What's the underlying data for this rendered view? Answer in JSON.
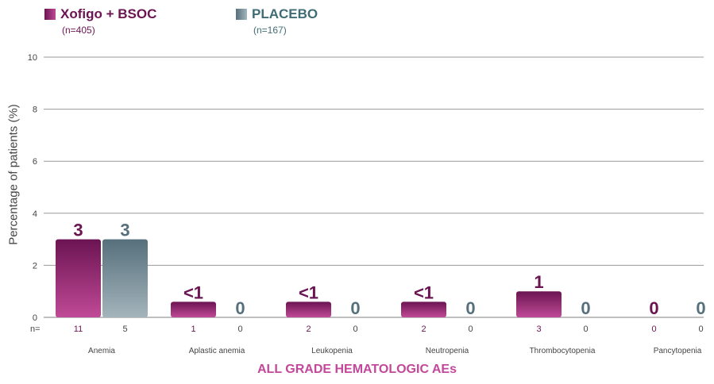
{
  "chart_data": {
    "type": "bar",
    "xlabel": "ALL GRADE HEMATOLOGIC AEs",
    "ylabel": "Percentage of patients (%)",
    "ylim": [
      0,
      10
    ],
    "yticks": [
      0,
      2,
      4,
      6,
      8,
      10
    ],
    "grid": true,
    "categories": [
      "Anemia",
      "Aplastic anemia",
      "Leukopenia",
      "Neutropenia",
      "Thrombocytopenia",
      "Pancytopenia"
    ],
    "n_prefix": "n=",
    "series": [
      {
        "name": "Xofigo + BSOC",
        "n_label": "(n=405)",
        "values": [
          3,
          0.6,
          0.6,
          0.6,
          1,
          0
        ],
        "data_labels": [
          "3",
          "<1",
          "<1",
          "<1",
          "1",
          "0"
        ],
        "n_values": [
          "11",
          "1",
          "2",
          "2",
          "3",
          "0"
        ],
        "color": "#6b1452",
        "gradient": [
          "#6b1452",
          "#c04a97"
        ]
      },
      {
        "name": "PLACEBO",
        "n_label": "(n=167)",
        "values": [
          3,
          0,
          0,
          0,
          0,
          0
        ],
        "data_labels": [
          "3",
          "0",
          "0",
          "0",
          "0",
          "0"
        ],
        "n_values": [
          "5",
          "0",
          "0",
          "0",
          "0",
          "0"
        ],
        "color": "#56707c",
        "gradient": [
          "#56707c",
          "#a4b4bb"
        ]
      }
    ]
  },
  "colors": {
    "grid": "#9a9a9a",
    "xlabel": "#c3479a",
    "text": "#444444"
  }
}
